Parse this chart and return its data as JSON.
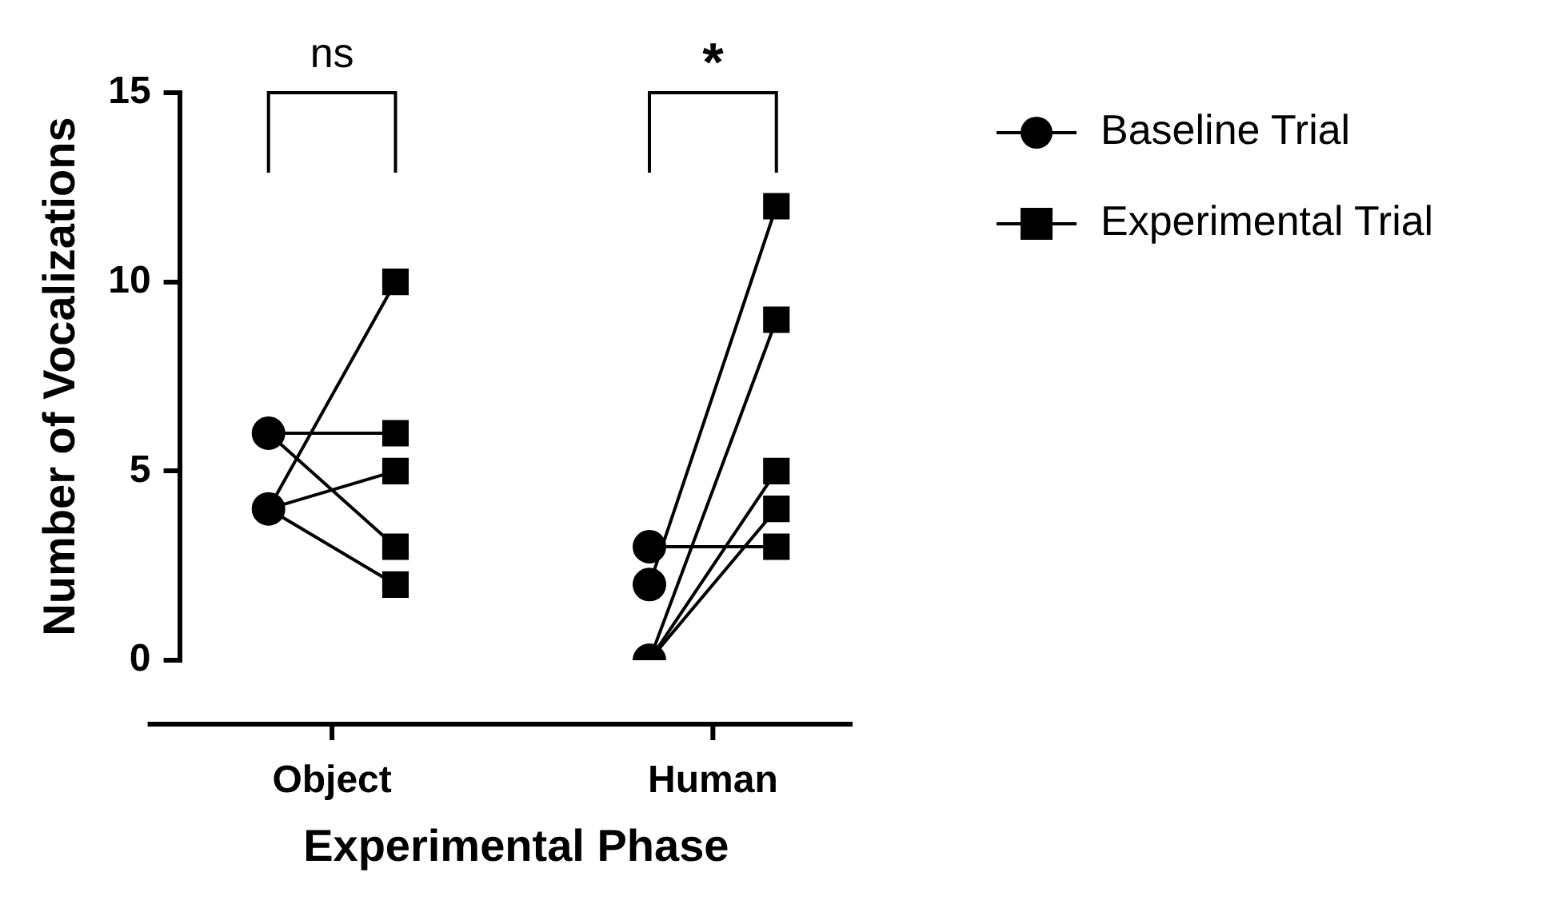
{
  "chart_data": {
    "type": "scatter",
    "xlabel": "Experimental Phase",
    "ylabel": "Number of Vocalizations",
    "categories": [
      null,
      null,
      null,
      null,
      null
    ],
    "series": [
      {
        "type": "line",
        "color": "#000000",
        "marker": "none",
        "values": [
          6,
          6,
          null,
          null,
          null
        ]
      },
      {
        "type": "line",
        "color": "#000000",
        "marker": "none",
        "values": [
          6,
          3,
          null,
          null,
          null
        ]
      },
      {
        "type": "line",
        "color": "#000000",
        "marker": "none",
        "values": [
          4,
          10,
          null,
          null,
          null
        ]
      },
      {
        "type": "line",
        "color": "#000000",
        "marker": "none",
        "values": [
          4,
          5,
          null,
          null,
          null
        ]
      },
      {
        "type": "line",
        "color": "#000000",
        "marker": "none",
        "values": [
          4,
          2,
          null,
          null,
          null
        ]
      },
      {
        "type": "line",
        "color": "#000000",
        "marker": "none",
        "values": [
          null,
          null,
          null,
          3,
          3
        ]
      },
      {
        "type": "line",
        "color": "#000000",
        "marker": "none",
        "values": [
          null,
          null,
          null,
          2,
          12
        ]
      },
      {
        "type": "line",
        "color": "#000000",
        "marker": "none",
        "values": [
          null,
          null,
          null,
          0,
          9
        ]
      },
      {
        "type": "line",
        "color": "#000000",
        "marker": "none",
        "values": [
          null,
          null,
          null,
          0,
          5
        ]
      },
      {
        "type": "line",
        "color": "#000000",
        "marker": "none",
        "values": [
          null,
          null,
          null,
          0,
          4
        ]
      },
      {
        "name": "Baseline Trial",
        "color": "#000000",
        "marker": "circle",
        "values": [
          6,
          null,
          null,
          3,
          null
        ]
      },
      {
        "color": "#000000",
        "marker": "circle",
        "values": [
          4,
          null,
          null,
          2,
          null
        ]
      },
      {
        "color": "#000000",
        "marker": "circle",
        "values": [
          null,
          null,
          null,
          0,
          null
        ]
      },
      {
        "name": "Experimental Trial",
        "color": "#000000",
        "marker": "square",
        "values": [
          null,
          10,
          null,
          null,
          12
        ]
      },
      {
        "color": "#000000",
        "marker": "square",
        "values": [
          null,
          6,
          null,
          null,
          9
        ]
      },
      {
        "color": "#000000",
        "marker": "square",
        "values": [
          null,
          5,
          null,
          null,
          5
        ]
      },
      {
        "color": "#000000",
        "marker": "square",
        "values": [
          null,
          3,
          null,
          null,
          4
        ]
      },
      {
        "color": "#000000",
        "marker": "square",
        "values": [
          null,
          2,
          null,
          null,
          3
        ]
      }
    ],
    "line_style": "solid",
    "ylim": [
      0,
      15
    ],
    "yticks": [
      0,
      5,
      10,
      15
    ],
    "grid": false,
    "legend": "top right",
    "annotations": [
      "ns",
      "*",
      "Object",
      "Human"
    ]
  }
}
